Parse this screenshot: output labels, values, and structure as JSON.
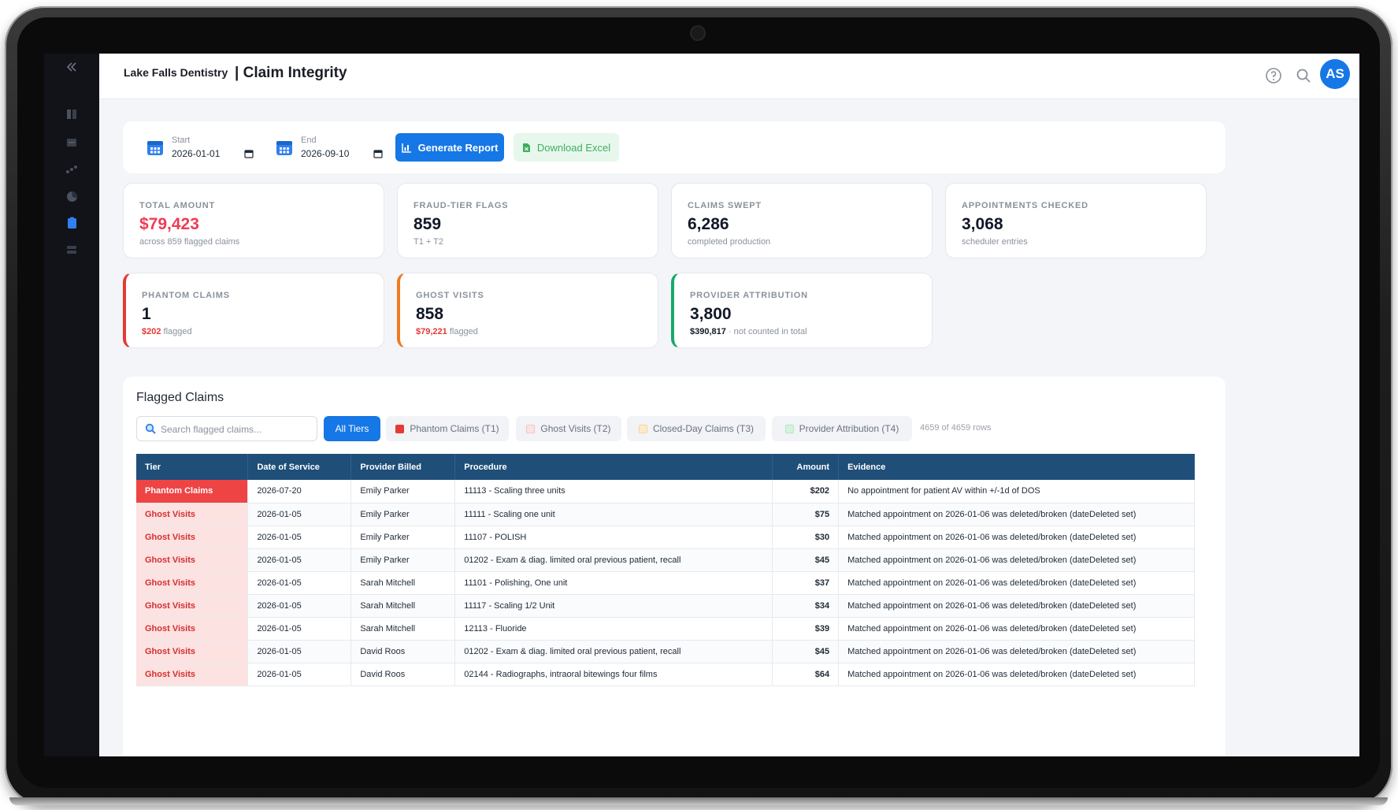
{
  "header": {
    "brand": "Lake Falls Dentistry",
    "title": "| Claim Integrity",
    "avatar_initials": "AS"
  },
  "filters": {
    "start_label": "Start",
    "start_value": "2026-01-01",
    "end_label": "End",
    "end_value": "2026-09-10",
    "generate_label": "Generate Report",
    "download_label": "Download Excel"
  },
  "stats": [
    {
      "label": "TOTAL AMOUNT",
      "value": "$79,423",
      "sub": "across 859 flagged claims"
    },
    {
      "label": "FRAUD-TIER FLAGS",
      "value": "859",
      "sub": "T1 + T2"
    },
    {
      "label": "CLAIMS SWEPT",
      "value": "6,286",
      "sub": "completed production"
    },
    {
      "label": "APPOINTMENTS CHECKED",
      "value": "3,068",
      "sub": "scheduler entries"
    }
  ],
  "tiers": [
    {
      "label": "PHANTOM CLAIMS",
      "value": "1",
      "sub_amount": "$202",
      "sub_text": " flagged"
    },
    {
      "label": "GHOST VISITS",
      "value": "858",
      "sub_amount": "$79,221",
      "sub_text": " flagged"
    },
    {
      "label": "PROVIDER ATTRIBUTION",
      "value": "3,800",
      "sub_amount": "$390,817",
      "sub_text": " · not counted in total"
    }
  ],
  "flagged": {
    "title": "Flagged Claims",
    "search_placeholder": "Search flagged claims...",
    "chips": [
      "All Tiers",
      "Phantom Claims (T1)",
      "Ghost Visits (T2)",
      "Closed-Day Claims (T3)",
      "Provider Attribution (T4)"
    ],
    "chip_colors": [
      "#1677e6",
      "#e53935",
      "#fde2e2",
      "#fdebc8",
      "#d4f2dc"
    ],
    "row_count": "4659 of 4659 rows",
    "columns": [
      "Tier",
      "Date of Service",
      "Provider Billed",
      "Procedure",
      "Amount",
      "Evidence"
    ],
    "rows": [
      [
        "Phantom Claims",
        "2026-07-20",
        "Emily Parker",
        "11113 - Scaling three units",
        "$202",
        "No appointment for patient AV within +/-1d of DOS"
      ],
      [
        "Ghost Visits",
        "2026-01-05",
        "Emily Parker",
        "11111 - Scaling one unit",
        "$75",
        "Matched appointment on 2026-01-06 was deleted/broken (dateDeleted set)"
      ],
      [
        "Ghost Visits",
        "2026-01-05",
        "Emily Parker",
        "11107 - POLISH",
        "$30",
        "Matched appointment on 2026-01-06 was deleted/broken (dateDeleted set)"
      ],
      [
        "Ghost Visits",
        "2026-01-05",
        "Emily Parker",
        "01202 - Exam & diag. limited oral previous patient, recall",
        "$45",
        "Matched appointment on 2026-01-06 was deleted/broken (dateDeleted set)"
      ],
      [
        "Ghost Visits",
        "2026-01-05",
        "Sarah Mitchell",
        "11101 - Polishing, One unit",
        "$37",
        "Matched appointment on 2026-01-06 was deleted/broken (dateDeleted set)"
      ],
      [
        "Ghost Visits",
        "2026-01-05",
        "Sarah Mitchell",
        "11117 - Scaling 1/2 Unit",
        "$34",
        "Matched appointment on 2026-01-06 was deleted/broken (dateDeleted set)"
      ],
      [
        "Ghost Visits",
        "2026-01-05",
        "Sarah Mitchell",
        "12113 - Fluoride",
        "$39",
        "Matched appointment on 2026-01-06 was deleted/broken (dateDeleted set)"
      ],
      [
        "Ghost Visits",
        "2026-01-05",
        "David Roos",
        "01202 - Exam & diag. limited oral previous patient, recall",
        "$45",
        "Matched appointment on 2026-01-06 was deleted/broken (dateDeleted set)"
      ],
      [
        "Ghost Visits",
        "2026-01-05",
        "David Roos",
        "02144 - Radiographs, intraoral bitewings four films",
        "$64",
        "Matched appointment on 2026-01-06 was deleted/broken (dateDeleted set)"
      ]
    ]
  },
  "colors": {
    "accent": "#1677e6",
    "header_table": "#1f4e79",
    "phantom": "#ef4444",
    "ghost_bg": "#fde2e2",
    "orange": "#f07a1f",
    "green": "#19a86b"
  }
}
